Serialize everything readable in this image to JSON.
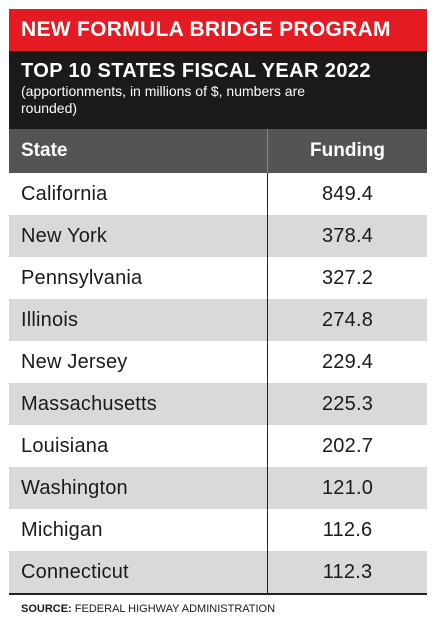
{
  "banner": {
    "program": "NEW FORMULA BRIDGE PROGRAM",
    "title": "TOP 10 STATES FISCAL YEAR 2022",
    "subtitle": "(apportionments, in millions of $, numbers are rounded)"
  },
  "colors": {
    "banner_red": "#e41b23",
    "banner_black": "#1a1a1a",
    "header_gray": "#545454",
    "row_shade": "#d9d9d9"
  },
  "table": {
    "headers": [
      "State",
      "Funding"
    ],
    "rows": [
      {
        "state": "California",
        "funding": "849.4"
      },
      {
        "state": "New York",
        "funding": "378.4"
      },
      {
        "state": "Pennsylvania",
        "funding": "327.2"
      },
      {
        "state": "Illinois",
        "funding": "274.8"
      },
      {
        "state": "New Jersey",
        "funding": "229.4"
      },
      {
        "state": "Massachusetts",
        "funding": "225.3"
      },
      {
        "state": "Louisiana",
        "funding": "202.7"
      },
      {
        "state": "Washington",
        "funding": "121.0"
      },
      {
        "state": "Michigan",
        "funding": "112.6"
      },
      {
        "state": "Connecticut",
        "funding": "112.3"
      }
    ]
  },
  "source": {
    "label": "SOURCE:",
    "text": "FEDERAL HIGHWAY ADMINISTRATION"
  }
}
